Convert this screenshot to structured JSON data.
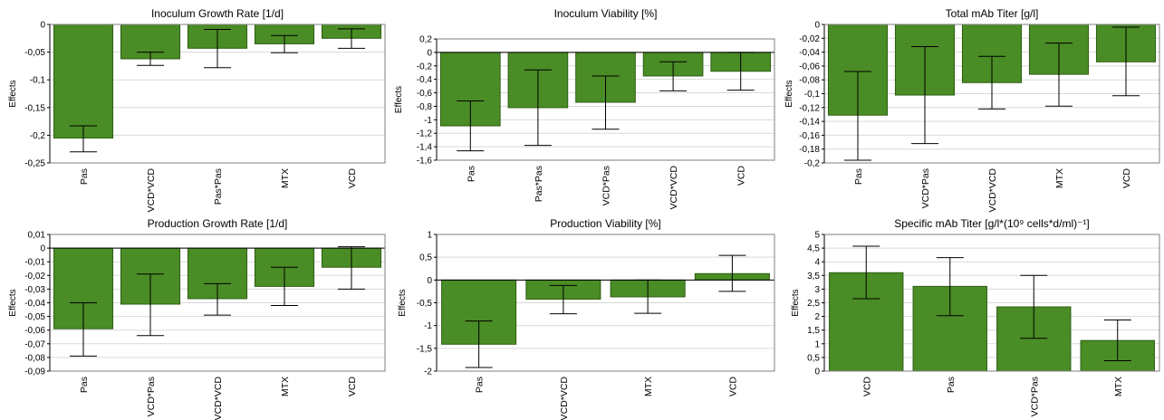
{
  "colors": {
    "bar": "#4a8c25",
    "bar_edge": "#2e5e14",
    "grid": "#d9d9d9",
    "axis": "#000000",
    "zero_line": "#000000"
  },
  "chart_data": [
    {
      "type": "bar",
      "title": "Inoculum Growth Rate [1/d]",
      "ylabel": "Effects",
      "categories": [
        "Pas",
        "VCD*VCD",
        "Pas*Pas",
        "MTX",
        "VCD"
      ],
      "values": [
        -0.205,
        -0.062,
        -0.043,
        -0.035,
        -0.025
      ],
      "error_low": [
        -0.23,
        -0.074,
        -0.078,
        -0.051,
        -0.043
      ],
      "error_high": [
        -0.183,
        -0.05,
        -0.009,
        -0.02,
        -0.008
      ],
      "ylim": [
        -0.25,
        0
      ],
      "yticks": [
        -0.25,
        -0.2,
        -0.15,
        -0.1,
        -0.05,
        0
      ],
      "ytick_labels": [
        "-0,25",
        "-0,2",
        "-0,15",
        "-0,1",
        "-0,05",
        "0"
      ],
      "grid": true
    },
    {
      "type": "bar",
      "title": "Inoculum Viability [%]",
      "ylabel": "Effects",
      "categories": [
        "Pas",
        "Pas*Pas",
        "VCD*Pas",
        "VCD*VCD",
        "VCD"
      ],
      "values": [
        -1.09,
        -0.82,
        -0.74,
        -0.35,
        -0.28
      ],
      "error_low": [
        -1.46,
        -1.38,
        -1.14,
        -0.57,
        -0.56
      ],
      "error_high": [
        -0.72,
        -0.26,
        -0.35,
        -0.14,
        0.0
      ],
      "ylim": [
        -1.6,
        0.2
      ],
      "yticks": [
        -1.6,
        -1.4,
        -1.2,
        -1,
        -0.8,
        -0.6,
        -0.4,
        -0.2,
        0,
        0.2
      ],
      "ytick_labels": [
        "-1,6",
        "-1,4",
        "-1,2",
        "-1",
        "-0,8",
        "-0,6",
        "-0,4",
        "-0,2",
        "0",
        "0,2"
      ],
      "grid": true
    },
    {
      "type": "bar",
      "title": "Total mAb Titer [g/l]",
      "ylabel": "Effects",
      "categories": [
        "Pas",
        "VCD*Pas",
        "VCD*VCD",
        "MTX",
        "VCD"
      ],
      "values": [
        -0.131,
        -0.102,
        -0.084,
        -0.072,
        -0.054
      ],
      "error_low": [
        -0.196,
        -0.172,
        -0.122,
        -0.118,
        -0.103
      ],
      "error_high": [
        -0.068,
        -0.032,
        -0.046,
        -0.027,
        -0.004
      ],
      "ylim": [
        -0.2,
        0
      ],
      "yticks": [
        -0.2,
        -0.18,
        -0.16,
        -0.14,
        -0.12,
        -0.1,
        -0.08,
        -0.06,
        -0.04,
        -0.02,
        0
      ],
      "ytick_labels": [
        "-0,2",
        "-0,18",
        "-0,16",
        "-0,14",
        "-0,12",
        "-0,1",
        "-0,08",
        "-0,06",
        "-0,04",
        "-0,02",
        "0"
      ],
      "grid": true
    },
    {
      "type": "bar",
      "title": "Production Growth Rate [1/d]",
      "ylabel": "Effects",
      "categories": [
        "Pas",
        "VCD*Pas",
        "VCD*VCD",
        "MTX",
        "VCD"
      ],
      "values": [
        -0.059,
        -0.041,
        -0.037,
        -0.028,
        -0.014
      ],
      "error_low": [
        -0.079,
        -0.064,
        -0.049,
        -0.042,
        -0.03
      ],
      "error_high": [
        -0.04,
        -0.019,
        -0.026,
        -0.014,
        0.001
      ],
      "ylim": [
        -0.09,
        0.01
      ],
      "yticks": [
        -0.09,
        -0.08,
        -0.07,
        -0.06,
        -0.05,
        -0.04,
        -0.03,
        -0.02,
        -0.01,
        0,
        0.01
      ],
      "ytick_labels": [
        "-0,09",
        "-0,08",
        "-0,07",
        "-0,06",
        "-0,05",
        "-0,04",
        "-0,03",
        "-0,02",
        "-0,01",
        "0",
        "0,01"
      ],
      "grid": true
    },
    {
      "type": "bar",
      "title": "Production Viability [%]",
      "ylabel": "Effects",
      "categories": [
        "Pas",
        "VCD*VCD",
        "MTX",
        "VCD"
      ],
      "values": [
        -1.41,
        -0.42,
        -0.37,
        0.14
      ],
      "error_low": [
        -1.92,
        -0.74,
        -0.73,
        -0.25
      ],
      "error_high": [
        -0.9,
        -0.12,
        0.0,
        0.54
      ],
      "ylim": [
        -2,
        1
      ],
      "yticks": [
        -2,
        -1.5,
        -1,
        -0.5,
        0,
        0.5,
        1
      ],
      "ytick_labels": [
        "-2",
        "-1,5",
        "-1",
        "-0,5",
        "0",
        "0,5",
        "1"
      ],
      "grid": true
    },
    {
      "type": "bar",
      "title": "Specific mAb Titer [g/l*(10⁹ cells*d/ml)⁻¹]",
      "ylabel": "Effects",
      "categories": [
        "VCD",
        "Pas",
        "VCD*Pas",
        "MTX"
      ],
      "values": [
        3.6,
        3.1,
        2.35,
        1.12
      ],
      "error_low": [
        2.65,
        2.03,
        1.2,
        0.38
      ],
      "error_high": [
        4.57,
        4.15,
        3.5,
        1.87
      ],
      "ylim": [
        0,
        5
      ],
      "yticks": [
        0,
        0.5,
        1,
        1.5,
        2,
        2.5,
        3,
        3.5,
        4,
        4.5,
        5
      ],
      "ytick_labels": [
        "0",
        "0,5",
        "1",
        "1,5",
        "2",
        "2,5",
        "3",
        "3,5",
        "4",
        "4,5",
        "5"
      ],
      "grid": true
    }
  ]
}
